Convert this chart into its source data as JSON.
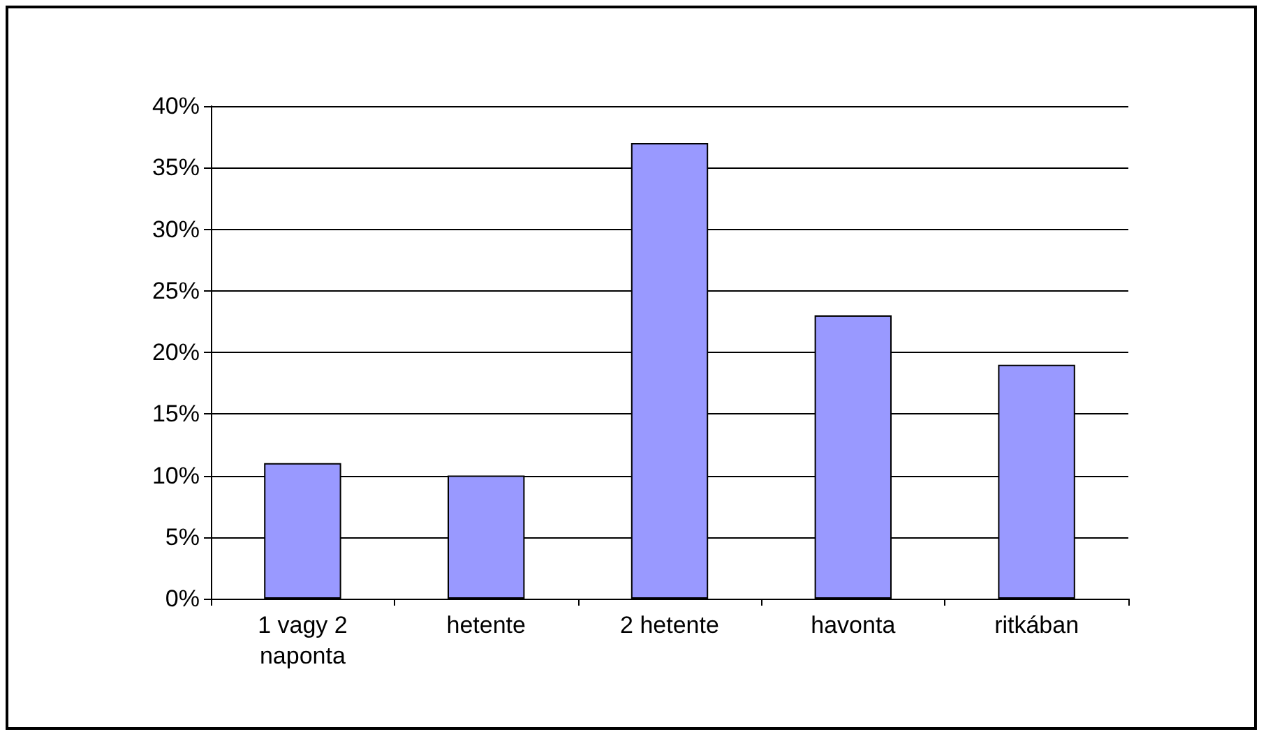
{
  "chart_data": {
    "type": "bar",
    "categories": [
      "1 vagy 2\nnaponta",
      "hetente",
      "2 hetente",
      "havonta",
      "ritkában"
    ],
    "values": [
      11,
      10,
      37,
      23,
      19
    ],
    "color": "#9999ff",
    "ylim": [
      0,
      40
    ],
    "yticks": [
      {
        "value": 0,
        "label": "0%"
      },
      {
        "value": 5,
        "label": "5%"
      },
      {
        "value": 10,
        "label": "10%"
      },
      {
        "value": 15,
        "label": "15%"
      },
      {
        "value": 20,
        "label": "20%"
      },
      {
        "value": 25,
        "label": "25%"
      },
      {
        "value": 30,
        "label": "30%"
      },
      {
        "value": 35,
        "label": "35%"
      },
      {
        "value": 40,
        "label": "40%"
      }
    ],
    "grid": "y"
  }
}
